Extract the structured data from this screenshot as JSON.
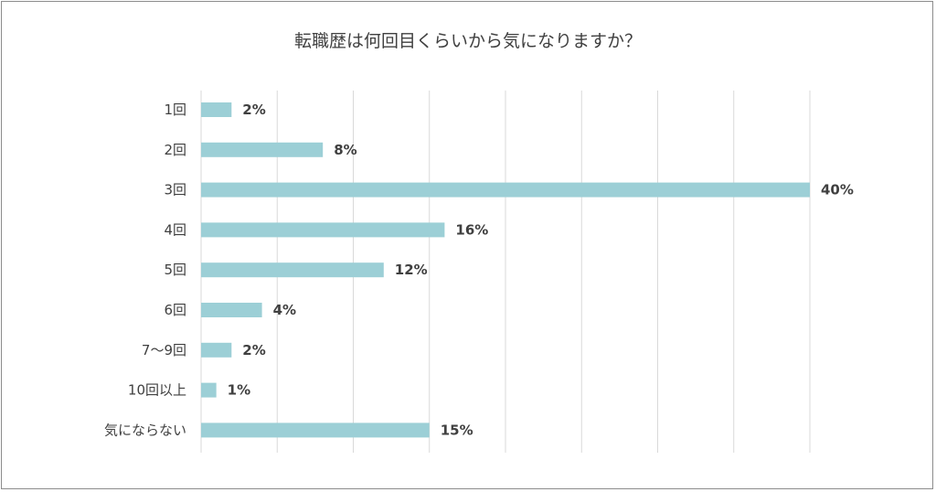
{
  "chart_data": {
    "type": "bar",
    "orientation": "horizontal",
    "title": "転職歴は何回目くらいから気になりますか？",
    "categories": [
      "1回",
      "2回",
      "3回",
      "4回",
      "5回",
      "6回",
      "7～9回",
      "10回以上",
      "気にならない"
    ],
    "values": [
      2,
      8,
      40,
      16,
      12,
      4,
      2,
      1,
      15
    ],
    "data_labels": [
      "2%",
      "8%",
      "40%",
      "16%",
      "12%",
      "4%",
      "2%",
      "1%",
      "15%"
    ],
    "unit": "%",
    "xlim": [
      0,
      40
    ],
    "grid": true,
    "legend": "none",
    "bar_color": "#9ccfd6"
  }
}
